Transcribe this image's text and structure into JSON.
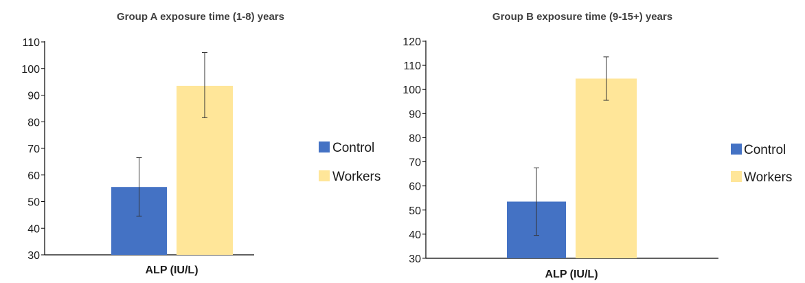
{
  "colors": {
    "control": "#4472c4",
    "workers": "#ffe699",
    "axis": "#000000",
    "error_bar": "#333333"
  },
  "chart_data": [
    {
      "type": "bar",
      "title": "Group A exposure time (1-8)  years",
      "categories": [
        "ALP (IU/L)"
      ],
      "xlabel": "ALP (IU/L)",
      "ylabel": "",
      "ylim": [
        30,
        110
      ],
      "yticks": [
        30,
        40,
        50,
        60,
        70,
        80,
        90,
        100,
        110
      ],
      "series": [
        {
          "name": "Control",
          "values": [
            55.5
          ],
          "error_low": [
            44.5
          ],
          "error_high": [
            66.5
          ]
        },
        {
          "name": "Workers",
          "values": [
            93.5
          ],
          "error_low": [
            81.5
          ],
          "error_high": [
            106
          ]
        }
      ],
      "legend": {
        "position": "right",
        "entries": [
          "Control",
          "Workers"
        ]
      },
      "grid": false
    },
    {
      "type": "bar",
      "title": "Group B exposure time (9-15+) years",
      "categories": [
        "ALP (IU/L)"
      ],
      "xlabel": "ALP (IU/L)",
      "ylabel": "",
      "ylim": [
        30,
        120
      ],
      "yticks": [
        30,
        40,
        50,
        60,
        70,
        80,
        90,
        100,
        110,
        120
      ],
      "series": [
        {
          "name": "Control",
          "values": [
            53.5
          ],
          "error_low": [
            39.5
          ],
          "error_high": [
            67.5
          ]
        },
        {
          "name": "Workers",
          "values": [
            104.5
          ],
          "error_low": [
            95.5
          ],
          "error_high": [
            113.5
          ]
        }
      ],
      "legend": {
        "position": "right",
        "entries": [
          "Control",
          "Workers"
        ]
      },
      "grid": false
    }
  ]
}
